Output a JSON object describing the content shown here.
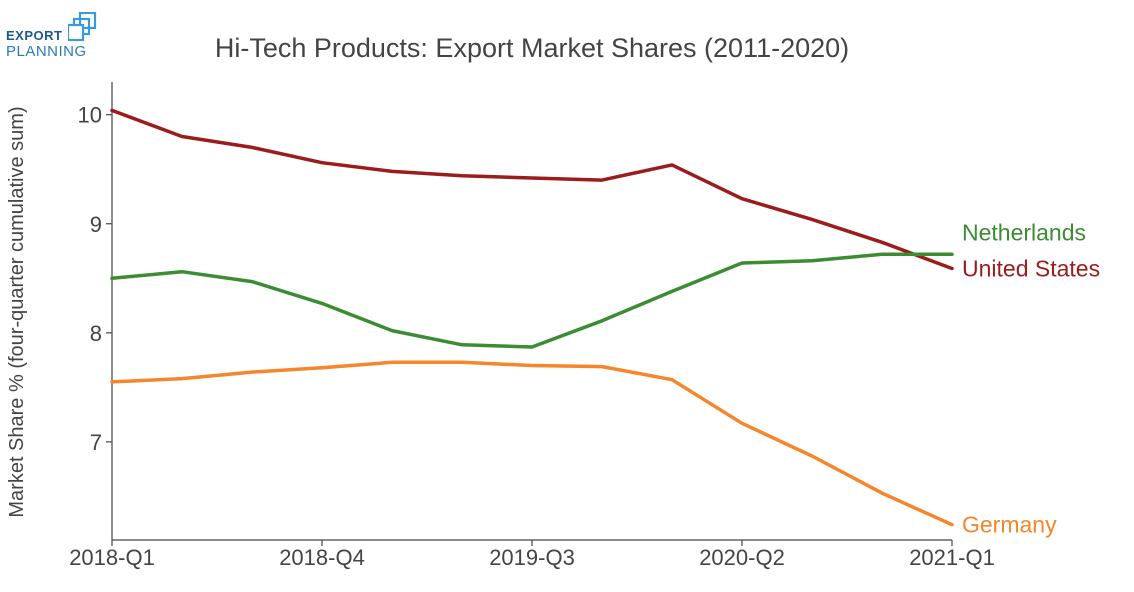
{
  "logo": {
    "line1": "EXPORT",
    "line2": "PLANNING",
    "icon": "nested-squares-logo-icon",
    "color_text1": "#1d5a8c",
    "color_text2": "#2a7ab8",
    "color_mark": "#3a9ad9"
  },
  "chart_data": {
    "type": "line",
    "title": "Hi-Tech Products: Export Market Shares (2011-2020)",
    "xlabel": "",
    "ylabel": "Market Share % (four-quarter cumulative sum)",
    "x": [
      "2018-Q1",
      "2018-Q2",
      "2018-Q3",
      "2018-Q4",
      "2019-Q1",
      "2019-Q2",
      "2019-Q3",
      "2019-Q4",
      "2020-Q1",
      "2020-Q2",
      "2020-Q3",
      "2020-Q4",
      "2021-Q1"
    ],
    "x_ticks": [
      "2018-Q1",
      "2018-Q4",
      "2019-Q3",
      "2020-Q2",
      "2021-Q1"
    ],
    "ylim": [
      6.1,
      10.3
    ],
    "y_ticks": [
      7,
      8,
      9,
      10
    ],
    "grid": false,
    "legend": "direct-labels-right",
    "series": [
      {
        "name": "United States",
        "color": "#9b1c1c",
        "values": [
          10.04,
          9.8,
          9.7,
          9.56,
          9.48,
          9.44,
          9.42,
          9.4,
          9.54,
          9.23,
          9.04,
          8.83,
          8.59
        ]
      },
      {
        "name": "Netherlands",
        "color": "#3c8c34",
        "values": [
          8.5,
          8.56,
          8.47,
          8.27,
          8.02,
          7.89,
          7.87,
          8.11,
          8.38,
          8.64,
          8.66,
          8.72,
          8.72
        ]
      },
      {
        "name": "Germany",
        "color": "#f5862b",
        "values": [
          7.55,
          7.58,
          7.64,
          7.68,
          7.73,
          7.73,
          7.7,
          7.69,
          7.57,
          7.17,
          6.87,
          6.53,
          6.24
        ]
      }
    ]
  }
}
